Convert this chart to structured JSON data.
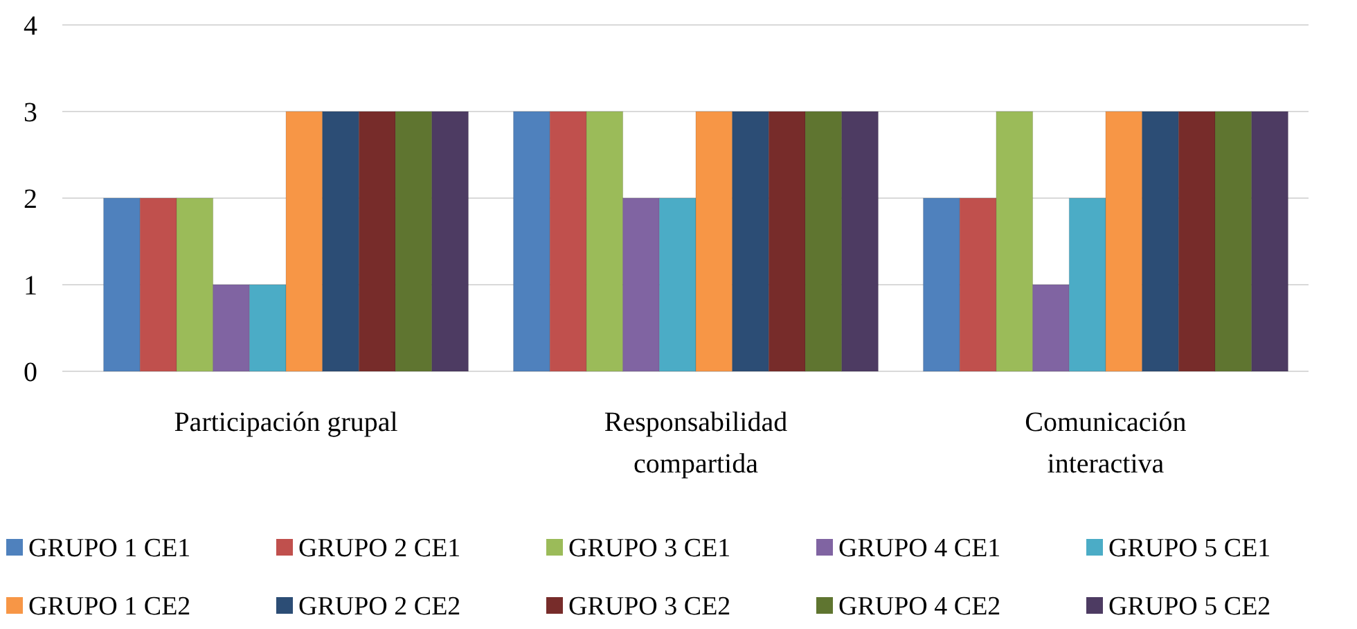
{
  "chart_data": {
    "type": "bar",
    "categories": [
      "Participación grupal",
      "Responsabilidad compartida",
      "Comunicación interactiva"
    ],
    "series": [
      {
        "name": "GRUPO 1 CE1",
        "color": "#4f81bd",
        "values": [
          2,
          3,
          2
        ]
      },
      {
        "name": "GRUPO 2 CE1",
        "color": "#c0504d",
        "values": [
          2,
          3,
          2
        ]
      },
      {
        "name": "GRUPO 3 CE1",
        "color": "#9bbb59",
        "values": [
          2,
          3,
          3
        ]
      },
      {
        "name": "GRUPO 4 CE1",
        "color": "#8064a2",
        "values": [
          1,
          2,
          1
        ]
      },
      {
        "name": "GRUPO 5 CE1",
        "color": "#4bacc6",
        "values": [
          1,
          2,
          2
        ]
      },
      {
        "name": "GRUPO 1 CE2",
        "color": "#f79646",
        "values": [
          3,
          3,
          3
        ]
      },
      {
        "name": "GRUPO 2 CE2",
        "color": "#2c4d75",
        "values": [
          3,
          3,
          3
        ]
      },
      {
        "name": "GRUPO 3 CE2",
        "color": "#772c2a",
        "values": [
          3,
          3,
          3
        ]
      },
      {
        "name": "GRUPO 4 CE2",
        "color": "#5f7530",
        "values": [
          3,
          3,
          3
        ]
      },
      {
        "name": "GRUPO 5 CE2",
        "color": "#4d3b62",
        "values": [
          3,
          3,
          3
        ]
      }
    ],
    "ylim": [
      0,
      4
    ],
    "yticks": [
      0,
      1,
      2,
      3,
      4
    ],
    "grid": "y",
    "legend": "bottom"
  }
}
